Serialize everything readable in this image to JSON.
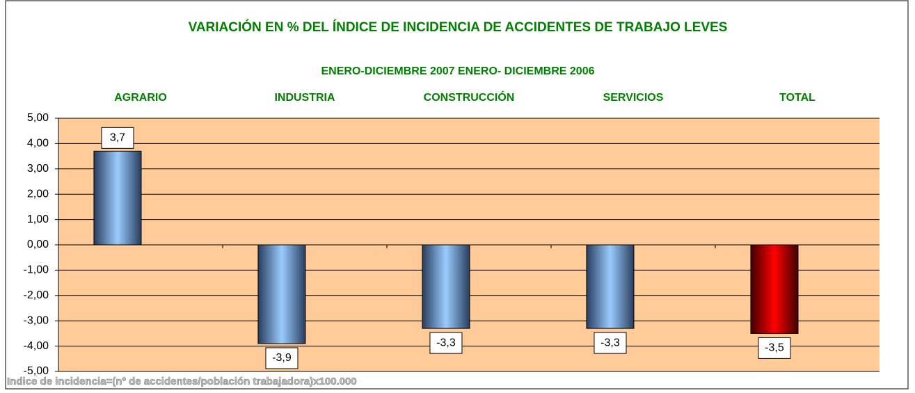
{
  "chart_data": {
    "type": "bar",
    "title": "VARIACIÓN EN % DEL ÍNDICE DE INCIDENCIA DE ACCIDENTES DE TRABAJO LEVES",
    "subtitle": "ENERO-DICIEMBRE 2007 ENERO- DICIEMBRE 2006",
    "note": "Indice de incidencia=(nº de accidentes/población trabajadora)x100.000",
    "categories": [
      "AGRARIO",
      "INDUSTRIA",
      "CONSTRUCCIÓN",
      "SERVICIOS",
      "TOTAL"
    ],
    "values": [
      3.7,
      -3.9,
      -3.3,
      -3.3,
      -3.5
    ],
    "value_labels": [
      "3,7",
      "-3,9",
      "-3,3",
      "-3,3",
      "-3,5"
    ],
    "colors": [
      "#99ccff",
      "#99ccff",
      "#99ccff",
      "#99ccff",
      "#ff0000"
    ],
    "ylim": [
      -5,
      5
    ],
    "yticks": [
      {
        "value": 5,
        "label": "5,00"
      },
      {
        "value": 4,
        "label": "4,00"
      },
      {
        "value": 3,
        "label": "3,00"
      },
      {
        "value": 2,
        "label": "2,00"
      },
      {
        "value": 1,
        "label": "1,00"
      },
      {
        "value": 0,
        "label": "0,00"
      },
      {
        "value": -1,
        "label": "-1,00"
      },
      {
        "value": -2,
        "label": "-2,00"
      },
      {
        "value": -3,
        "label": "-3,00"
      },
      {
        "value": -4,
        "label": "-4,00"
      },
      {
        "value": -5,
        "label": "-5,00"
      }
    ],
    "grid": true,
    "plot_background": "#ffcc99",
    "text_color": "#008000"
  }
}
